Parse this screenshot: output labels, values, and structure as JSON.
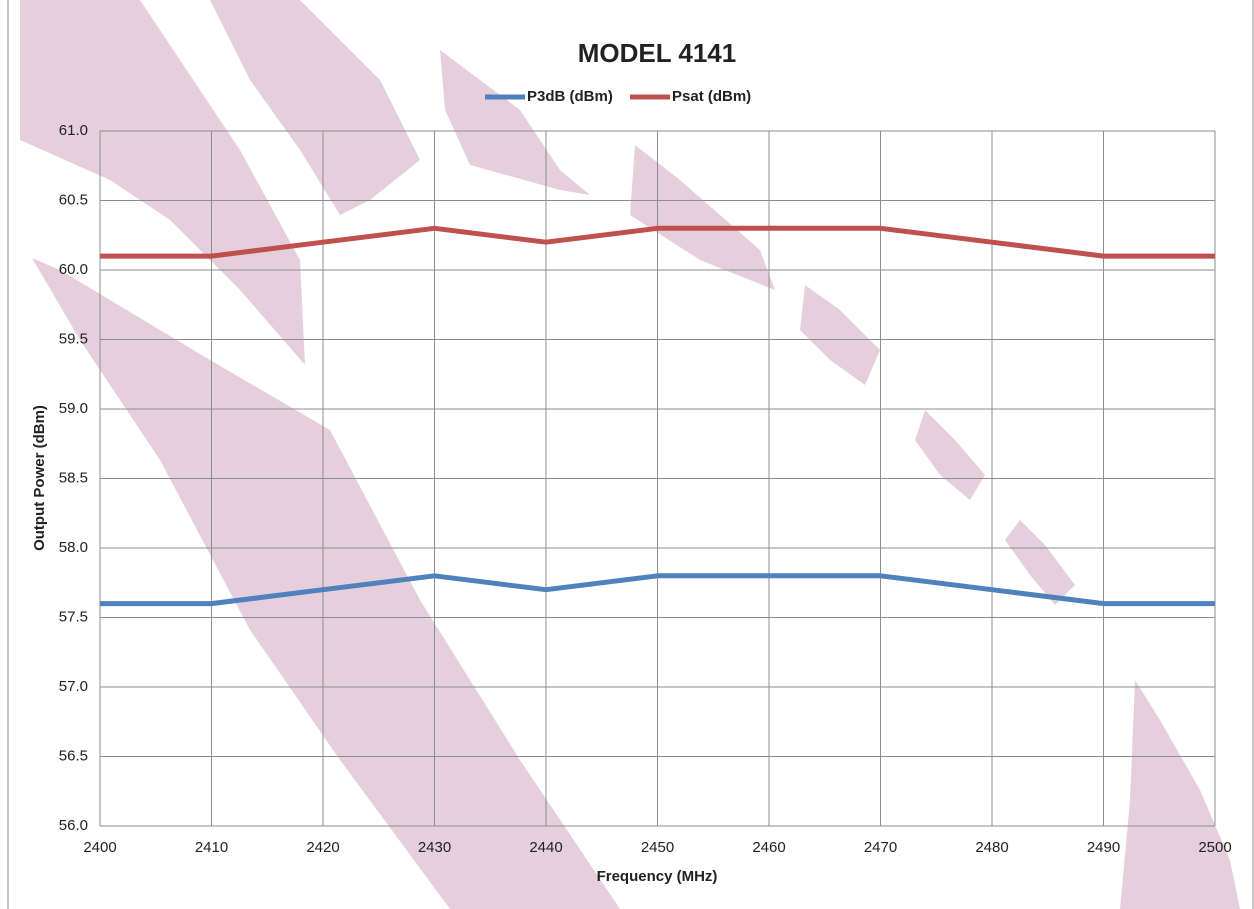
{
  "chart_data": {
    "type": "line",
    "title": "MODEL 4141",
    "x_label": "Frequency (MHz)",
    "y_label": "Output Power (dBm)",
    "x": [
      2400,
      2410,
      2420,
      2430,
      2440,
      2450,
      2460,
      2470,
      2480,
      2490,
      2500
    ],
    "series": [
      {
        "name": "P3dB (dBm)",
        "color": "#4f81bd",
        "values": [
          57.6,
          57.6,
          57.7,
          57.8,
          57.7,
          57.8,
          57.8,
          57.8,
          57.7,
          57.6,
          57.6
        ]
      },
      {
        "name": "Psat (dBm)",
        "color": "#c0504d",
        "values": [
          60.1,
          60.1,
          60.2,
          60.3,
          60.2,
          60.3,
          60.3,
          60.3,
          60.2,
          60.1,
          60.1
        ]
      }
    ],
    "xlim": [
      2400,
      2500
    ],
    "xticks": [
      2400,
      2410,
      2420,
      2430,
      2440,
      2450,
      2460,
      2470,
      2480,
      2490,
      2500
    ],
    "ylim": [
      56,
      61
    ],
    "yticks": [
      {
        "value": 56,
        "label": "56.0"
      },
      56.5,
      {
        "value": 57,
        "label": "57.0"
      },
      57.5,
      {
        "value": 58,
        "label": "58.0"
      },
      58.5,
      {
        "value": 59,
        "label": "59.0"
      },
      59.5,
      {
        "value": 60,
        "label": "60.0"
      },
      60.5,
      {
        "value": 61,
        "label": "61.0"
      }
    ],
    "grid": true,
    "legend": "top"
  }
}
